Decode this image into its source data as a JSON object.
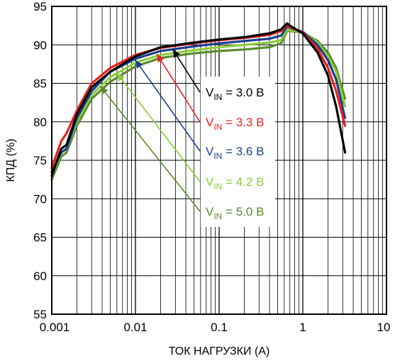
{
  "chart_data": {
    "type": "line",
    "title": "",
    "xlabel": "ТОК НАГРУЗКИ (A)",
    "ylabel": "КПД (%)",
    "x_scale": "log",
    "xlim": [
      0.001,
      10
    ],
    "ylim": [
      55,
      95
    ],
    "x_ticks": [
      0.001,
      0.01,
      0.1,
      1,
      10
    ],
    "x_tick_labels": [
      "0.001",
      "0.01",
      "0.1",
      "1",
      "10"
    ],
    "y_ticks": [
      55,
      60,
      65,
      70,
      75,
      80,
      85,
      90,
      95
    ],
    "y_tick_labels": [
      "55",
      "60",
      "65",
      "70",
      "75",
      "80",
      "85",
      "90",
      "95"
    ],
    "grid": true,
    "legend_placement": "right, inside plot",
    "series": [
      {
        "name_main": "V",
        "name_sub": "IN",
        "name_value": " = 3.0 В",
        "color": "#000000",
        "x": [
          0.001,
          0.0013,
          0.0015,
          0.002,
          0.003,
          0.005,
          0.01,
          0.02,
          0.05,
          0.1,
          0.2,
          0.4,
          0.55,
          0.65,
          0.7,
          1.0,
          1.5,
          2.0,
          2.5,
          3.2
        ],
        "y": [
          73,
          76.5,
          77,
          81,
          84.5,
          86.5,
          88.5,
          89.7,
          90.3,
          90.7,
          91,
          91.5,
          92,
          92.8,
          92.5,
          91.5,
          89,
          86,
          82,
          76
        ]
      },
      {
        "name_main": "V",
        "name_sub": "IN",
        "name_value": " = 3.3 В",
        "color": "#e8201e",
        "x": [
          0.001,
          0.0013,
          0.0015,
          0.002,
          0.003,
          0.005,
          0.01,
          0.02,
          0.05,
          0.1,
          0.2,
          0.4,
          0.55,
          0.65,
          0.7,
          1.0,
          1.5,
          2.0,
          2.5,
          3.2
        ],
        "y": [
          74,
          77.5,
          78.5,
          81.5,
          85,
          87,
          88.7,
          89.6,
          90.2,
          90.6,
          90.9,
          91.3,
          91.8,
          92.6,
          92.3,
          91.6,
          89.5,
          87,
          84,
          79.5
        ]
      },
      {
        "name_main": "V",
        "name_sub": "IN",
        "name_value": " = 3.6 В",
        "color": "#1d3f8f",
        "x": [
          0.001,
          0.0013,
          0.0015,
          0.002,
          0.003,
          0.005,
          0.01,
          0.02,
          0.05,
          0.1,
          0.2,
          0.4,
          0.55,
          0.65,
          0.7,
          1.0,
          1.5,
          2.0,
          2.5,
          3.2
        ],
        "y": [
          73.5,
          76,
          76.5,
          80.5,
          84,
          86.5,
          88.2,
          89.2,
          89.8,
          90.2,
          90.5,
          90.8,
          91.2,
          92.4,
          92.2,
          91.7,
          90,
          88,
          85.5,
          80.5
        ]
      },
      {
        "name_main": "V",
        "name_sub": "IN",
        "name_value": " = 4.2 В",
        "color": "#8ccc3c",
        "x": [
          0.001,
          0.0013,
          0.0015,
          0.002,
          0.003,
          0.005,
          0.01,
          0.02,
          0.05,
          0.1,
          0.2,
          0.4,
          0.55,
          0.65,
          0.7,
          1.0,
          1.5,
          2.0,
          2.5,
          3.2
        ],
        "y": [
          73,
          76,
          76.5,
          80,
          83.5,
          85.8,
          87.7,
          88.7,
          89.3,
          89.7,
          90,
          90.3,
          90.6,
          92,
          91.9,
          91.7,
          90.3,
          88.5,
          86.5,
          82
        ]
      },
      {
        "name_main": "V",
        "name_sub": "IN",
        "name_value": " = 5.0 В",
        "color": "#5c8a2e",
        "x": [
          0.001,
          0.0013,
          0.0015,
          0.002,
          0.003,
          0.005,
          0.01,
          0.02,
          0.05,
          0.1,
          0.2,
          0.4,
          0.55,
          0.65,
          0.7,
          1.0,
          1.5,
          2.0,
          2.5,
          3.2
        ],
        "y": [
          72.5,
          75.5,
          76,
          79.5,
          83,
          85.2,
          87.2,
          88.3,
          88.9,
          89.2,
          89.4,
          89.7,
          90.2,
          91.8,
          91.8,
          91.6,
          90.5,
          89,
          87,
          83
        ]
      }
    ]
  }
}
